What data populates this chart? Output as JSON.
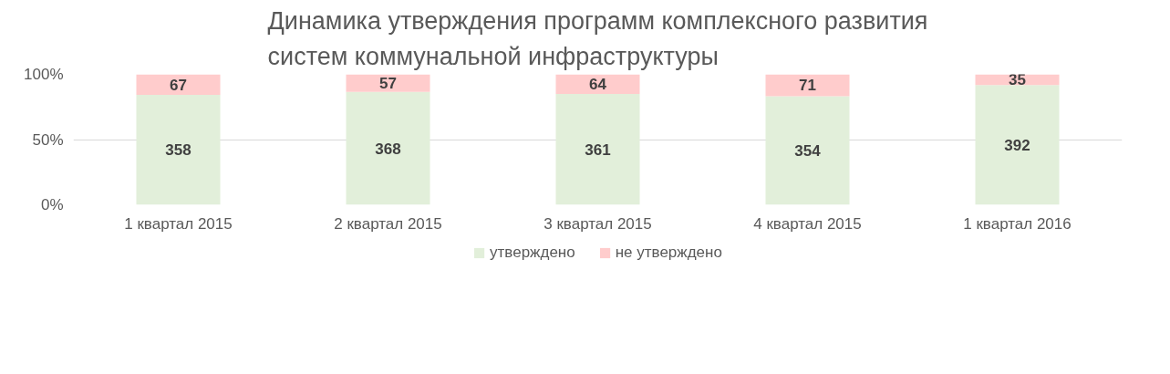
{
  "chart_data": {
    "type": "bar",
    "stacked": true,
    "title": "Динамика утверждения программ комплексного развития\nсистем коммунальной инфраструктуры",
    "categories": [
      "1 квартал 2015",
      "2 квартал 2015",
      "3 квартал 2015",
      "4 квартал 2015",
      "1 квартал 2016"
    ],
    "series": [
      {
        "name": "утверждено",
        "color": "#e2efda",
        "values": [
          84.2,
          86.6,
          84.9,
          83.3,
          91.8
        ]
      },
      {
        "name": "не утверждено",
        "color": "#ffcccc",
        "values": [
          15.8,
          13.4,
          15.1,
          16.7,
          8.2
        ]
      }
    ],
    "annotations": [
      "358",
      "368",
      "361",
      "354",
      "392",
      "67",
      "57",
      "64",
      "71",
      "35"
    ],
    "ylim": [
      0,
      100
    ],
    "yticks": [
      {
        "value": 0,
        "label": "0%"
      },
      {
        "value": 50,
        "label": "50%"
      },
      {
        "value": 100,
        "label": "100%"
      }
    ],
    "grid": "y",
    "legend": "bottom"
  }
}
